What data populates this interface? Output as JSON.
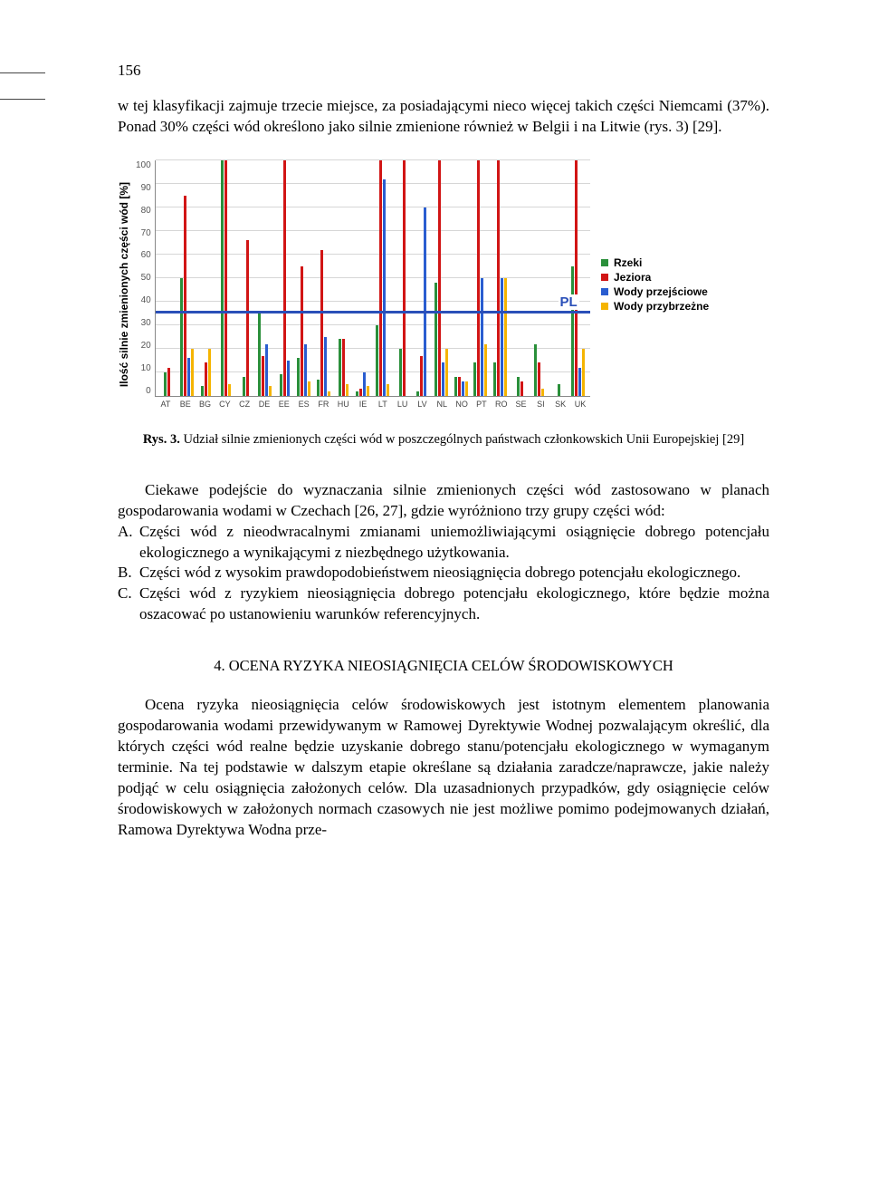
{
  "page_number": "156",
  "para1": "w tej klasyfikacji zajmuje trzecie miejsce, za posiadającymi nieco więcej takich części Niemcami (37%). Ponad 30% części wód określono jako silnie zmienione również w Belgii i na Litwie (rys. 3) [29].",
  "chart": {
    "type": "bar",
    "ylabel": "Ilość silnie zmienionych części wód [%]",
    "ymin": 0,
    "ymax": 100,
    "ytick_step": 10,
    "yticks": [
      "100",
      "90",
      "80",
      "70",
      "60",
      "50",
      "40",
      "30",
      "20",
      "10",
      "0"
    ],
    "grid_color": "#bbbbbb",
    "axis_color": "#888888",
    "ref_line": {
      "value": 35,
      "color": "#2a4fb8",
      "label": "PL"
    },
    "series_colors": {
      "rzeki": "#2a8f3a",
      "jeziora": "#d11515",
      "przejsciowe": "#2a5dd0",
      "przybrzezne": "#f5b400"
    },
    "legend": [
      {
        "label": "Rzeki",
        "color": "#2a8f3a"
      },
      {
        "label": "Jeziora",
        "color": "#d11515"
      },
      {
        "label": "Wody przejściowe",
        "color": "#2a5dd0"
      },
      {
        "label": "Wody przybrzeżne",
        "color": "#f5b400"
      }
    ],
    "countries": [
      "AT",
      "BE",
      "BG",
      "CY",
      "CZ",
      "DE",
      "EE",
      "ES",
      "FR",
      "HU",
      "IE",
      "LT",
      "LU",
      "LV",
      "NL",
      "NO",
      "PT",
      "RO",
      "SE",
      "SI",
      "SK",
      "UK"
    ],
    "data": {
      "AT": {
        "rzeki": 10,
        "jeziora": 12
      },
      "BE": {
        "rzeki": 50,
        "jeziora": 85,
        "przejsciowe": 16,
        "przybrzezne": 20
      },
      "BG": {
        "rzeki": 4,
        "jeziora": 14,
        "przybrzezne": 20
      },
      "CY": {
        "rzeki": 100,
        "jeziora": 100,
        "przybrzezne": 5
      },
      "CZ": {
        "rzeki": 8,
        "jeziora": 66
      },
      "DE": {
        "rzeki": 36,
        "jeziora": 17,
        "przejsciowe": 22,
        "przybrzezne": 4
      },
      "EE": {
        "rzeki": 9,
        "jeziora": 100,
        "przejsciowe": 15
      },
      "ES": {
        "rzeki": 16,
        "jeziora": 55,
        "przejsciowe": 22,
        "przybrzezne": 6
      },
      "FR": {
        "rzeki": 7,
        "jeziora": 62,
        "przejsciowe": 25,
        "przybrzezne": 2
      },
      "HU": {
        "rzeki": 24,
        "jeziora": 24,
        "przybrzezne": 5
      },
      "IE": {
        "rzeki": 2,
        "jeziora": 3,
        "przejsciowe": 10,
        "przybrzezne": 4
      },
      "LT": {
        "rzeki": 30,
        "jeziora": 100,
        "przejsciowe": 92,
        "przybrzezne": 5
      },
      "LU": {
        "rzeki": 20,
        "jeziora": 100
      },
      "LV": {
        "rzeki": 2,
        "jeziora": 17,
        "przejsciowe": 80
      },
      "NL": {
        "rzeki": 48,
        "jeziora": 100,
        "przejsciowe": 14,
        "przybrzezne": 20
      },
      "NO": {
        "rzeki": 8,
        "jeziora": 8,
        "przejsciowe": 6,
        "przybrzezne": 6
      },
      "PT": {
        "rzeki": 14,
        "jeziora": 100,
        "przejsciowe": 50,
        "przybrzezne": 22
      },
      "RO": {
        "rzeki": 14,
        "jeziora": 100,
        "przejsciowe": 50,
        "przybrzezne": 50
      },
      "SE": {
        "rzeki": 8,
        "jeziora": 6
      },
      "SI": {
        "rzeki": 22,
        "jeziora": 14,
        "przybrzezne": 3
      },
      "SK": {
        "rzeki": 5
      },
      "UK": {
        "rzeki": 55,
        "jeziora": 100,
        "przejsciowe": 12,
        "przybrzezne": 20
      }
    }
  },
  "caption_prefix": "Rys. 3.",
  "caption": "Udział silnie zmienionych części wód w poszczególnych państwach członkowskich Unii Europejskiej [29]",
  "para2_lead": "Ciekawe podejście do wyznaczania silnie zmienionych części wód zastosowano w planach gospodarowania wodami w Czechach [26, 27], gdzie wyróżniono trzy grupy części wód:",
  "list": [
    {
      "letter": "A.",
      "text": "Części wód z nieodwracalnymi zmianami uniemożliwiającymi osiągnięcie dobrego potencjału ekologicznego a wynikającymi z niezbędnego użytkowania."
    },
    {
      "letter": "B.",
      "text": "Części wód z wysokim prawdopodobieństwem nieosiągnięcia dobrego potencjału ekologicznego."
    },
    {
      "letter": "C.",
      "text": "Części wód z ryzykiem nieosiągnięcia dobrego potencjału ekologicznego, które będzie można oszacować po ustanowieniu warunków referencyjnych."
    }
  ],
  "section_heading": "4. OCENA RYZYKA NIEOSIĄGNIĘCIA CELÓW ŚRODOWISKOWYCH",
  "para3": "Ocena ryzyka nieosiągnięcia celów środowiskowych jest istotnym elementem planowania gospodarowania wodami przewidywanym w Ramowej Dyrektywie Wodnej pozwalającym określić, dla których części wód realne będzie uzyskanie dobrego stanu/potencjału ekologicznego w wymaganym terminie. Na tej podstawie w dalszym etapie określane są działania zaradcze/naprawcze, jakie należy podjąć w celu osiągnięcia założonych celów. Dla uzasadnionych przypadków, gdy osiągnięcie celów środowiskowych w założonych normach czasowych nie jest możliwe pomimo podejmowanych działań, Ramowa Dyrektywa Wodna prze-"
}
